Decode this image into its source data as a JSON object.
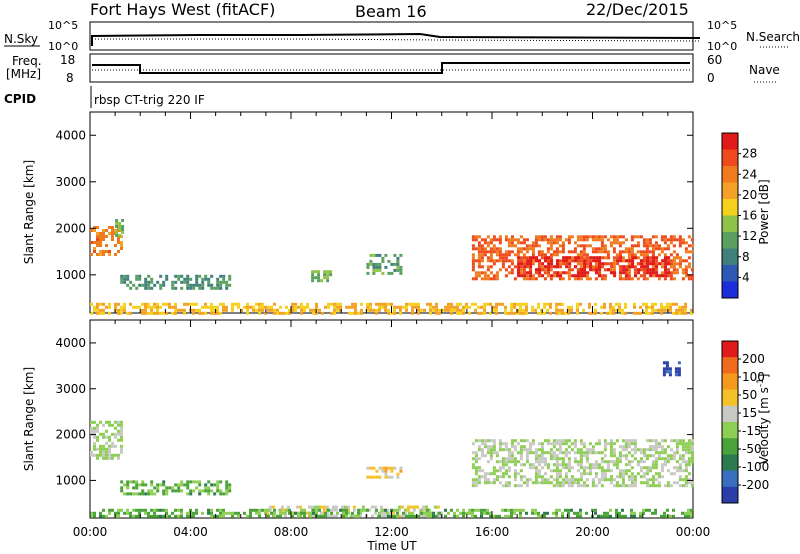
{
  "header": {
    "radar": "Fort Hays West (fitACF)",
    "beam": "Beam 16",
    "date": "22/Dec/2015"
  },
  "top_panels": {
    "nsky_label": "N.Sky",
    "nsky_ticks": [
      "10^5",
      "10^0"
    ],
    "nsearch_label": "N.Search",
    "nsearch_ticks": [
      "10^5",
      "10^0"
    ],
    "freq_label_1": "Freq.",
    "freq_label_2": "[MHz]",
    "freq_ticks": [
      "18",
      "8"
    ],
    "nave_label": "Nave",
    "nave_ticks": [
      "60",
      "0"
    ],
    "cpid_label": "CPID",
    "cpid_text": "rbsp CT-trig 220 IF"
  },
  "colors": {
    "power": [
      "#1e2ddc",
      "#2f58b5",
      "#3f7f7c",
      "#5aa060",
      "#8fc24a",
      "#f5d11e",
      "#f3a227",
      "#f07a1e",
      "#ef4a1d",
      "#e11a1a"
    ],
    "velocity": [
      "#2a3da8",
      "#3a6fbf",
      "#2d7a50",
      "#4aa23a",
      "#8fce55",
      "#c8c8c4",
      "#f5c12a",
      "#f59a1e",
      "#f06a1c",
      "#e11a1a"
    ]
  },
  "chart_data": [
    {
      "type": "heatmap",
      "name": "power",
      "ylabel": "Slant Range [km]",
      "xlabel": "",
      "xlim": [
        "00:00",
        "24:00"
      ],
      "ylim": [
        180,
        4500
      ],
      "y_ticks": [
        "1000",
        "2000",
        "3000",
        "4000"
      ],
      "x_ticks": [
        "00:00",
        "04:00",
        "08:00",
        "12:00",
        "16:00",
        "20:00",
        "00:00"
      ],
      "colorbar": {
        "label": "Power [dB]",
        "tick_labels": [
          "4",
          "8",
          "12",
          "16",
          "20",
          "24",
          "28"
        ],
        "range": [
          0,
          30
        ]
      },
      "regions": [
        {
          "t": [
            0.0,
            1.2
          ],
          "range": [
            1450,
            2050
          ],
          "value": 22
        },
        {
          "t": [
            1.0,
            1.3
          ],
          "range": [
            1800,
            2200
          ],
          "value": 12
        },
        {
          "t": [
            1.2,
            5.6
          ],
          "range": [
            700,
            1000
          ],
          "value": 9
        },
        {
          "t": [
            8.8,
            9.6
          ],
          "range": [
            850,
            1100
          ],
          "value": 12
        },
        {
          "t": [
            11.0,
            12.4
          ],
          "range": [
            1000,
            1450
          ],
          "value": 10
        },
        {
          "t": [
            15.2,
            24.0
          ],
          "range": [
            900,
            1850
          ],
          "value": 24
        },
        {
          "t": [
            17.0,
            23.0
          ],
          "range": [
            950,
            1400
          ],
          "value": 28
        },
        {
          "t": [
            0.0,
            24.0
          ],
          "range": [
            200,
            400
          ],
          "value": 18
        }
      ]
    },
    {
      "type": "heatmap",
      "name": "velocity",
      "ylabel": "Slant Range [km]",
      "xlabel": "Time UT",
      "xlim": [
        "00:00",
        "24:00"
      ],
      "ylim": [
        180,
        4500
      ],
      "y_ticks": [
        "1000",
        "2000",
        "3000",
        "4000"
      ],
      "x_ticks": [
        "00:00",
        "04:00",
        "08:00",
        "12:00",
        "16:00",
        "20:00",
        "00:00"
      ],
      "colorbar": {
        "label": "Velocity [m s",
        "label_sup": "-1",
        "label_end": "]",
        "tick_labels": [
          "200",
          "100",
          "50",
          "15",
          "-15",
          "-50",
          "-100",
          "-200"
        ],
        "range": [
          -250,
          250
        ]
      },
      "regions": [
        {
          "t": [
            0.0,
            1.2
          ],
          "range": [
            1450,
            2300
          ],
          "value": 0
        },
        {
          "t": [
            1.2,
            5.6
          ],
          "range": [
            700,
            1000
          ],
          "value": -60
        },
        {
          "t": [
            11.0,
            12.4
          ],
          "range": [
            1050,
            1300
          ],
          "value": 60
        },
        {
          "t": [
            15.2,
            24.0
          ],
          "range": [
            900,
            1900
          ],
          "value": 0
        },
        {
          "t": [
            22.8,
            23.4
          ],
          "range": [
            3300,
            3600
          ],
          "value": -220
        },
        {
          "t": [
            7.0,
            14.0
          ],
          "range": [
            200,
            450
          ],
          "value": 30
        },
        {
          "t": [
            0.0,
            24.0
          ],
          "range": [
            200,
            380
          ],
          "value": -60
        }
      ]
    }
  ]
}
